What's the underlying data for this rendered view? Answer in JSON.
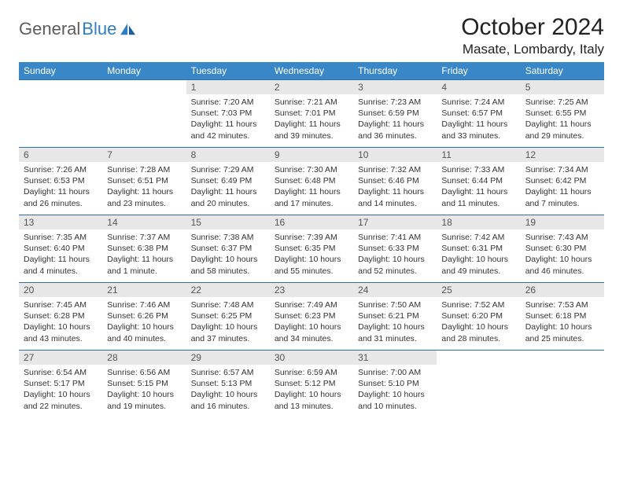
{
  "brand": {
    "part1": "General",
    "part2": "Blue"
  },
  "title": "October 2024",
  "location": "Masate, Lombardy, Italy",
  "colors": {
    "header_bg": "#3a87c8",
    "header_text": "#ffffff",
    "row_rule": "#2f6ea8",
    "daynum_bg": "#e7e7e7",
    "body_text": "#333333",
    "logo_gray": "#5c5c5c",
    "logo_blue": "#2f7fbf"
  },
  "weekdays": [
    "Sunday",
    "Monday",
    "Tuesday",
    "Wednesday",
    "Thursday",
    "Friday",
    "Saturday"
  ],
  "days": [
    {
      "n": 1,
      "sunrise": "7:20 AM",
      "sunset": "7:03 PM",
      "daylight": "11 hours and 42 minutes."
    },
    {
      "n": 2,
      "sunrise": "7:21 AM",
      "sunset": "7:01 PM",
      "daylight": "11 hours and 39 minutes."
    },
    {
      "n": 3,
      "sunrise": "7:23 AM",
      "sunset": "6:59 PM",
      "daylight": "11 hours and 36 minutes."
    },
    {
      "n": 4,
      "sunrise": "7:24 AM",
      "sunset": "6:57 PM",
      "daylight": "11 hours and 33 minutes."
    },
    {
      "n": 5,
      "sunrise": "7:25 AM",
      "sunset": "6:55 PM",
      "daylight": "11 hours and 29 minutes."
    },
    {
      "n": 6,
      "sunrise": "7:26 AM",
      "sunset": "6:53 PM",
      "daylight": "11 hours and 26 minutes."
    },
    {
      "n": 7,
      "sunrise": "7:28 AM",
      "sunset": "6:51 PM",
      "daylight": "11 hours and 23 minutes."
    },
    {
      "n": 8,
      "sunrise": "7:29 AM",
      "sunset": "6:49 PM",
      "daylight": "11 hours and 20 minutes."
    },
    {
      "n": 9,
      "sunrise": "7:30 AM",
      "sunset": "6:48 PM",
      "daylight": "11 hours and 17 minutes."
    },
    {
      "n": 10,
      "sunrise": "7:32 AM",
      "sunset": "6:46 PM",
      "daylight": "11 hours and 14 minutes."
    },
    {
      "n": 11,
      "sunrise": "7:33 AM",
      "sunset": "6:44 PM",
      "daylight": "11 hours and 11 minutes."
    },
    {
      "n": 12,
      "sunrise": "7:34 AM",
      "sunset": "6:42 PM",
      "daylight": "11 hours and 7 minutes."
    },
    {
      "n": 13,
      "sunrise": "7:35 AM",
      "sunset": "6:40 PM",
      "daylight": "11 hours and 4 minutes."
    },
    {
      "n": 14,
      "sunrise": "7:37 AM",
      "sunset": "6:38 PM",
      "daylight": "11 hours and 1 minute."
    },
    {
      "n": 15,
      "sunrise": "7:38 AM",
      "sunset": "6:37 PM",
      "daylight": "10 hours and 58 minutes."
    },
    {
      "n": 16,
      "sunrise": "7:39 AM",
      "sunset": "6:35 PM",
      "daylight": "10 hours and 55 minutes."
    },
    {
      "n": 17,
      "sunrise": "7:41 AM",
      "sunset": "6:33 PM",
      "daylight": "10 hours and 52 minutes."
    },
    {
      "n": 18,
      "sunrise": "7:42 AM",
      "sunset": "6:31 PM",
      "daylight": "10 hours and 49 minutes."
    },
    {
      "n": 19,
      "sunrise": "7:43 AM",
      "sunset": "6:30 PM",
      "daylight": "10 hours and 46 minutes."
    },
    {
      "n": 20,
      "sunrise": "7:45 AM",
      "sunset": "6:28 PM",
      "daylight": "10 hours and 43 minutes."
    },
    {
      "n": 21,
      "sunrise": "7:46 AM",
      "sunset": "6:26 PM",
      "daylight": "10 hours and 40 minutes."
    },
    {
      "n": 22,
      "sunrise": "7:48 AM",
      "sunset": "6:25 PM",
      "daylight": "10 hours and 37 minutes."
    },
    {
      "n": 23,
      "sunrise": "7:49 AM",
      "sunset": "6:23 PM",
      "daylight": "10 hours and 34 minutes."
    },
    {
      "n": 24,
      "sunrise": "7:50 AM",
      "sunset": "6:21 PM",
      "daylight": "10 hours and 31 minutes."
    },
    {
      "n": 25,
      "sunrise": "7:52 AM",
      "sunset": "6:20 PM",
      "daylight": "10 hours and 28 minutes."
    },
    {
      "n": 26,
      "sunrise": "7:53 AM",
      "sunset": "6:18 PM",
      "daylight": "10 hours and 25 minutes."
    },
    {
      "n": 27,
      "sunrise": "6:54 AM",
      "sunset": "5:17 PM",
      "daylight": "10 hours and 22 minutes."
    },
    {
      "n": 28,
      "sunrise": "6:56 AM",
      "sunset": "5:15 PM",
      "daylight": "10 hours and 19 minutes."
    },
    {
      "n": 29,
      "sunrise": "6:57 AM",
      "sunset": "5:13 PM",
      "daylight": "10 hours and 16 minutes."
    },
    {
      "n": 30,
      "sunrise": "6:59 AM",
      "sunset": "5:12 PM",
      "daylight": "10 hours and 13 minutes."
    },
    {
      "n": 31,
      "sunrise": "7:00 AM",
      "sunset": "5:10 PM",
      "daylight": "10 hours and 10 minutes."
    }
  ],
  "layout": {
    "first_weekday_index": 2,
    "rows": 5,
    "cols": 7
  },
  "labels": {
    "sunrise": "Sunrise:",
    "sunset": "Sunset:",
    "daylight": "Daylight:"
  }
}
